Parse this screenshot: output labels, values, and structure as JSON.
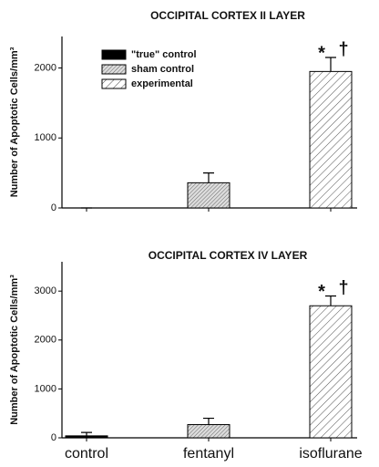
{
  "chart_data": [
    {
      "type": "bar",
      "title": "OCCIPITAL CORTEX II LAYER",
      "y_label": "Number of Apoptotic Cells/mm³",
      "categories": [
        null,
        null,
        null
      ],
      "values": [
        0,
        360,
        1950
      ],
      "errors": [
        0,
        140,
        200
      ],
      "patterns": [
        "solid",
        "dense",
        "sparse"
      ],
      "legend": [
        "\"true\" control",
        "sham control",
        "experimental"
      ],
      "legend_position": "upper left",
      "annotations": [
        "*",
        "†"
      ],
      "ylim": [
        0,
        2450
      ],
      "yticks": [
        0,
        1000,
        2000
      ]
    },
    {
      "type": "bar",
      "title": "OCCIPITAL CORTEX IV LAYER",
      "y_label": "Number of Apoptotic Cells/mm³",
      "categories": [
        "control",
        "fentanyl",
        "isoflurane"
      ],
      "values": [
        40,
        270,
        2700
      ],
      "errors": [
        70,
        130,
        200
      ],
      "patterns": [
        "solid",
        "dense",
        "sparse"
      ],
      "annotations": [
        "*",
        "†"
      ],
      "ylim": [
        0,
        3600
      ],
      "yticks": [
        0,
        1000,
        2000,
        3000
      ]
    }
  ]
}
